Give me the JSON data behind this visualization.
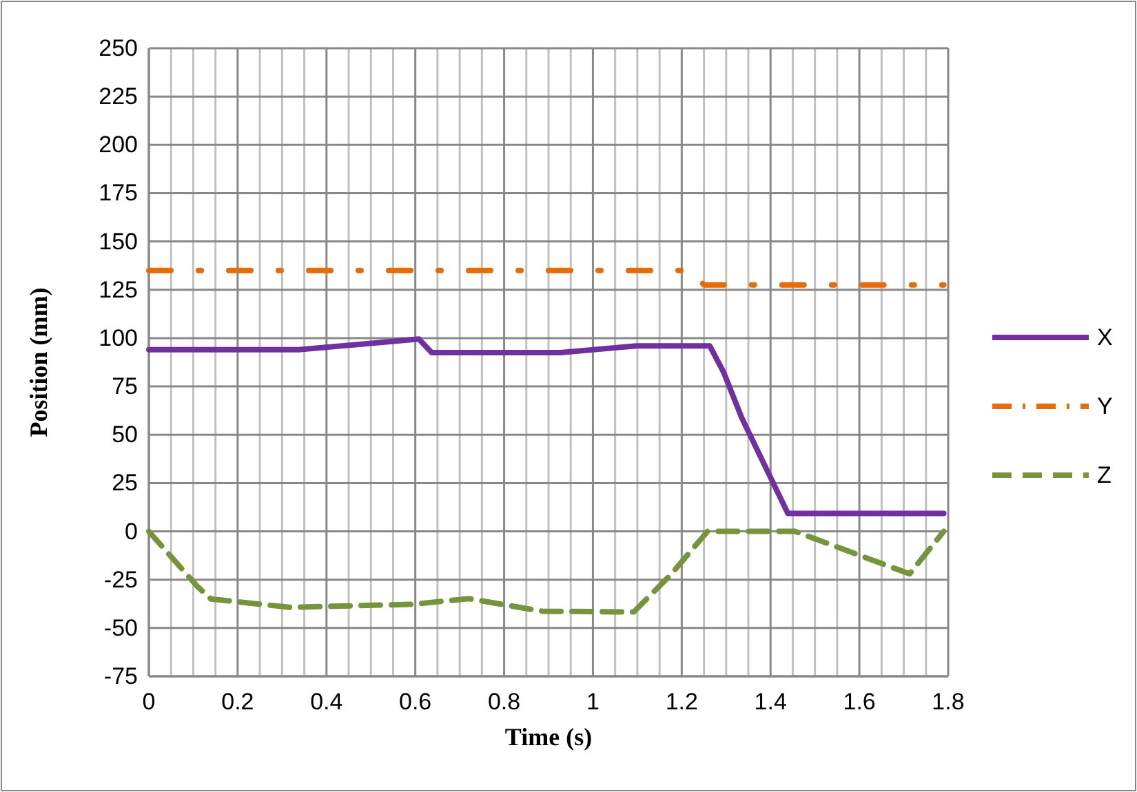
{
  "chart_data": {
    "type": "line",
    "xlabel": "Time (s)",
    "ylabel": "Position (mm)",
    "xlim": [
      0,
      1.8
    ],
    "xticks": [
      0,
      0.2,
      0.4,
      0.6,
      0.8,
      1,
      1.2,
      1.4,
      1.6,
      1.8
    ],
    "ylim": [
      -75,
      250
    ],
    "yticks": [
      -75,
      -50,
      -25,
      0,
      25,
      50,
      75,
      100,
      125,
      150,
      175,
      200,
      225,
      250
    ],
    "grid": true,
    "legend": "right",
    "marker": "none",
    "series": [
      {
        "name": "X",
        "color": "#7030a0",
        "line_style": "solid",
        "x": [
          0,
          0.337,
          0.608,
          0.637,
          0.927,
          1.098,
          1.263,
          1.294,
          1.335,
          1.439,
          1.79
        ],
        "values": [
          94,
          94,
          99.5,
          92.5,
          92.5,
          96,
          96,
          82.5,
          58.8,
          9.3,
          9.3
        ]
      },
      {
        "name": "Y",
        "color": "#e46c0a",
        "line_style": "dashdot",
        "x": [
          0,
          1.22,
          1.25,
          1.79
        ],
        "values": [
          135,
          135,
          127.5,
          127.5
        ]
      },
      {
        "name": "Z",
        "color": "#77933c",
        "line_style": "dashed",
        "x": [
          0,
          0.11,
          0.14,
          0.317,
          0.596,
          0.72,
          0.885,
          1.092,
          1.175,
          1.258,
          1.455,
          1.713,
          1.79
        ],
        "values": [
          0,
          -28.7,
          -35,
          -39.3,
          -37.7,
          -34.8,
          -41.3,
          -41.7,
          -22.5,
          0,
          0,
          -22,
          0
        ]
      }
    ]
  }
}
